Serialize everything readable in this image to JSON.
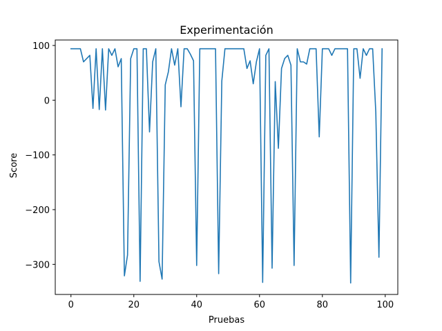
{
  "chart_data": {
    "type": "line",
    "title": "Experimentación",
    "xlabel": "Pruebas",
    "ylabel": "Score",
    "xlim": [
      -5,
      104
    ],
    "ylim": [
      -355,
      110
    ],
    "xticks": [
      0,
      20,
      40,
      60,
      80,
      100
    ],
    "yticks": [
      100,
      0,
      -100,
      -200,
      -300
    ],
    "ytick_labels": [
      "100",
      "0",
      "−100",
      "−200",
      "−300"
    ],
    "grid": false,
    "line_color": "#1f77b4",
    "series": [
      {
        "x": [
          0,
          1,
          2,
          3,
          4,
          5,
          6,
          7,
          8,
          9,
          10,
          11,
          12,
          13,
          14,
          15,
          16,
          17,
          18,
          19,
          20,
          21,
          22,
          23,
          24,
          25,
          26,
          27,
          28,
          29,
          30,
          31,
          32,
          33,
          34,
          35,
          36,
          37,
          38,
          39,
          40,
          41,
          42,
          43,
          44,
          45,
          46,
          47,
          48,
          49,
          50,
          51,
          52,
          53,
          54,
          55,
          56,
          57,
          58,
          59,
          60,
          61,
          62,
          63,
          64,
          65,
          66,
          67,
          68,
          69,
          70,
          71,
          72,
          73,
          74,
          75,
          76,
          77,
          78,
          79,
          80,
          81,
          82,
          83,
          84,
          85,
          86,
          87,
          88,
          89,
          90,
          91,
          92,
          93,
          94,
          95,
          96,
          97,
          98,
          99
        ],
        "values": [
          94,
          94,
          94,
          94,
          70,
          76,
          82,
          -15,
          94,
          -17,
          94,
          -18,
          94,
          82,
          94,
          61,
          76,
          -321,
          -283,
          76,
          94,
          94,
          -331,
          94,
          94,
          -58,
          70,
          94,
          -295,
          -327,
          28,
          52,
          94,
          64,
          94,
          -12,
          94,
          94,
          84,
          72,
          -302,
          94,
          94,
          94,
          94,
          94,
          94,
          -317,
          35,
          94,
          94,
          94,
          94,
          94,
          94,
          94,
          58,
          72,
          30,
          70,
          94,
          -333,
          82,
          94,
          -307,
          34,
          -88,
          58,
          76,
          82,
          64,
          -302,
          94,
          70,
          70,
          66,
          94,
          94,
          94,
          -67,
          94,
          94,
          94,
          82,
          94,
          94,
          94,
          94,
          94,
          -334,
          94,
          94,
          40,
          94,
          82,
          94,
          94,
          -22,
          -287,
          94
        ]
      }
    ]
  }
}
